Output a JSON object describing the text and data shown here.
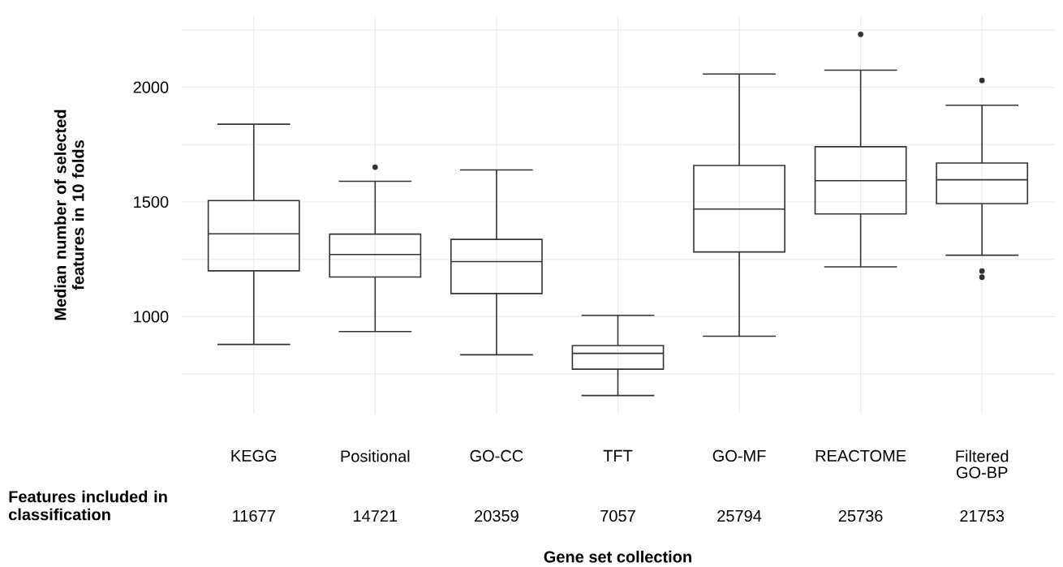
{
  "chart_data": {
    "type": "box",
    "categories": [
      "KEGG",
      "Positional",
      "GO-CC",
      "TFT",
      "GO-MF",
      "REACTOME",
      "Filtered GO-BP"
    ],
    "boxes": [
      {
        "low": 879,
        "q1": 1200,
        "median": 1361,
        "q3": 1506,
        "high": 1839
      },
      {
        "low": 935,
        "q1": 1173,
        "median": 1271,
        "q3": 1360,
        "high": 1590,
        "outliers": [
          1652
        ]
      },
      {
        "low": 834,
        "q1": 1101,
        "median": 1240,
        "q3": 1337,
        "high": 1640
      },
      {
        "low": 656,
        "q1": 771,
        "median": 840,
        "q3": 874,
        "high": 1006
      },
      {
        "low": 915,
        "q1": 1282,
        "median": 1469,
        "q3": 1659,
        "high": 2058
      },
      {
        "low": 1217,
        "q1": 1448,
        "median": 1593,
        "q3": 1741,
        "high": 2075,
        "outliers": [
          2231
        ]
      },
      {
        "low": 1268,
        "q1": 1493,
        "median": 1597,
        "q3": 1670,
        "high": 1922,
        "outliers": [
          2030,
          1199,
          1172
        ]
      }
    ],
    "color": "#333333",
    "ylim": [
      577,
      2310
    ],
    "yticks": [
      {
        "value": 750,
        "label": null
      },
      1000,
      {
        "value": 1250,
        "label": null
      },
      1500,
      {
        "value": 1750,
        "label": null
      },
      2000,
      {
        "value": 2250,
        "label": null
      }
    ],
    "grid": true,
    "xlabel": "Gene set collection",
    "ylabel": "Median number of selected features in 10 folds",
    "annotations": [
      "Features included in classification",
      "11677",
      "14721",
      "20359",
      "7057",
      "25794",
      "25736",
      "21753"
    ]
  }
}
